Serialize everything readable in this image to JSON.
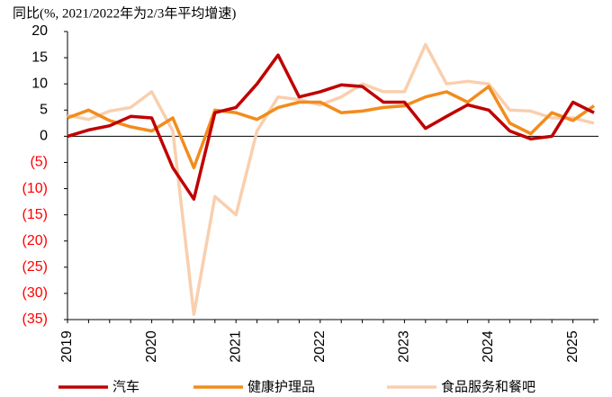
{
  "chart_data": {
    "type": "line",
    "title": "同比(%, 2021/2022年为2/3年平均增速)",
    "categories": [
      "2019",
      null,
      null,
      null,
      "2020",
      null,
      null,
      null,
      "2021",
      null,
      null,
      null,
      "2022",
      null,
      null,
      null,
      "2023",
      null,
      null,
      null,
      "2024",
      null,
      null,
      null,
      "2025",
      null
    ],
    "series": [
      {
        "name": "汽车",
        "color": "#C00000",
        "values": [
          0,
          1.2,
          2,
          3.8,
          3.5,
          -6,
          -12,
          4.5,
          5.5,
          10,
          15.5,
          7.5,
          8.5,
          9.8,
          9.5,
          6.5,
          6.5,
          1.5,
          3.8,
          6,
          5,
          1,
          -0.5,
          0,
          6.5,
          4.5
        ]
      },
      {
        "name": "健康护理品",
        "color": "#F28C1C",
        "values": [
          3.5,
          5,
          3,
          1.8,
          1,
          3.5,
          -6,
          5,
          4.5,
          3.2,
          5.5,
          6.5,
          6.5,
          4.5,
          4.8,
          5.5,
          5.8,
          7.5,
          8.5,
          6.5,
          9.5,
          2.5,
          0.5,
          4.5,
          3,
          5.8
        ]
      },
      {
        "name": "食品服务和餐吧",
        "color": "#F9CFAE",
        "values": [
          4,
          3.2,
          4.8,
          5.5,
          8.5,
          1,
          -34,
          -11.5,
          -15,
          1,
          7.5,
          7,
          6,
          7.5,
          10,
          8.5,
          8.5,
          17.5,
          10,
          10.5,
          10,
          5,
          4.8,
          3.5,
          3.5,
          2.5
        ]
      }
    ],
    "ylim": [
      -35,
      20
    ],
    "yticks": [
      {
        "value": -35,
        "label": "(35)"
      },
      {
        "value": -30,
        "label": "(30)"
      },
      {
        "value": -25,
        "label": "(25)"
      },
      {
        "value": -20,
        "label": "(20)"
      },
      {
        "value": -15,
        "label": "(15)"
      },
      {
        "value": -10,
        "label": "(10)"
      },
      {
        "value": -5,
        "label": "(5)"
      },
      0,
      5,
      10,
      15,
      20
    ],
    "grid": false
  }
}
